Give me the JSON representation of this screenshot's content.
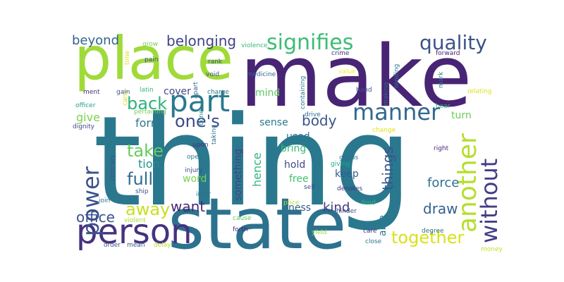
{
  "word_cloud": {
    "words": [
      {
        "text": "thing",
        "color": "#2a788e"
      },
      {
        "text": "make",
        "color": "#482475"
      },
      {
        "text": "state",
        "color": "#2c728e"
      },
      {
        "text": "place",
        "color": "#a0da39"
      },
      {
        "text": "part",
        "color": "#2a788e"
      },
      {
        "text": "person",
        "color": "#46327e"
      },
      {
        "text": "manner",
        "color": "#31688e"
      },
      {
        "text": "another",
        "color": "#b5de2b"
      },
      {
        "text": "without",
        "color": "#433e85"
      },
      {
        "text": "power",
        "color": "#3b528b"
      },
      {
        "text": "signifies",
        "color": "#3cbc75"
      },
      {
        "text": "quality",
        "color": "#3b528b"
      },
      {
        "text": "one's",
        "color": "#3e4989"
      },
      {
        "text": "back",
        "color": "#2db27d"
      },
      {
        "text": "take",
        "color": "#65cb5e"
      },
      {
        "text": "full",
        "color": "#2f6c8e"
      },
      {
        "text": "away",
        "color": "#c8e020"
      },
      {
        "text": "together",
        "color": "#d8e219"
      },
      {
        "text": "belonging",
        "color": "#414487"
      },
      {
        "text": "beyond",
        "color": "#33638d"
      },
      {
        "text": "body",
        "color": "#39568c"
      },
      {
        "text": "office",
        "color": "#3b528b"
      },
      {
        "text": "want",
        "color": "#482878"
      },
      {
        "text": "things",
        "color": "#3b528b"
      },
      {
        "text": "draw",
        "color": "#33638d"
      },
      {
        "text": "kind",
        "color": "#443a83"
      },
      {
        "text": "force",
        "color": "#2d718e"
      },
      {
        "text": "give",
        "color": "#7ad151"
      },
      {
        "text": "form",
        "color": "#2a788e"
      },
      {
        "text": "tion",
        "color": "#21918c"
      },
      {
        "text": "hence",
        "color": "#31b57b"
      },
      {
        "text": "cover",
        "color": "#404688"
      },
      {
        "text": "mind",
        "color": "#5ec962"
      },
      {
        "text": "sense",
        "color": "#2a788e"
      },
      {
        "text": "used",
        "color": "#2a788e"
      },
      {
        "text": "bring",
        "color": "#38b977"
      },
      {
        "text": "something",
        "color": "#414487"
      },
      {
        "text": "hold",
        "color": "#3e4989"
      },
      {
        "text": "free",
        "color": "#44bf70"
      },
      {
        "text": "keep",
        "color": "#365c8d"
      },
      {
        "text": "ness",
        "color": "#365c8d"
      },
      {
        "text": "able",
        "color": "#2a788e"
      },
      {
        "text": "turn",
        "color": "#6ccd5a"
      },
      {
        "text": "word",
        "color": "#7ad151"
      },
      {
        "text": "ment",
        "color": "#472c7a"
      },
      {
        "text": "officer",
        "color": "#1fa287"
      },
      {
        "text": "dignity",
        "color": "#3e4989"
      },
      {
        "text": "grow",
        "color": "#7ad151"
      },
      {
        "text": "pain",
        "color": "#3b528b"
      },
      {
        "text": "time",
        "color": "#dde318"
      },
      {
        "text": "carry",
        "color": "#d8e219"
      },
      {
        "text": "gain",
        "color": "#3b528b"
      },
      {
        "text": "latin",
        "color": "#35b779"
      },
      {
        "text": "pertaining",
        "color": "#73d056"
      },
      {
        "text": "violence",
        "color": "#35b779"
      },
      {
        "text": "rank",
        "color": "#39568c"
      },
      {
        "text": "void",
        "color": "#3b528b"
      },
      {
        "text": "apart",
        "color": "#31688e"
      },
      {
        "text": "charge",
        "color": "#2a788e"
      },
      {
        "text": "medicine",
        "color": "#31688e"
      },
      {
        "text": "containing",
        "color": "#2c728e"
      },
      {
        "text": "crime",
        "color": "#472f7d"
      },
      {
        "text": "value",
        "color": "#fde725"
      },
      {
        "text": "making",
        "color": "#31688e"
      },
      {
        "text": "tending",
        "color": "#2a788e"
      },
      {
        "text": "grow2",
        "color": "#7ad151"
      },
      {
        "text": "forward",
        "color": "#482475"
      },
      {
        "text": "mark",
        "color": "#2a788e"
      },
      {
        "text": "bear",
        "color": "#35b779"
      },
      {
        "text": "relating",
        "color": "#dde318"
      },
      {
        "text": "hand",
        "color": "#3b528b"
      },
      {
        "text": "done",
        "color": "#21918c"
      },
      {
        "text": "taking",
        "color": "#2c728e"
      },
      {
        "text": "drive",
        "color": "#31688e"
      },
      {
        "text": "change",
        "color": "#dde318"
      },
      {
        "text": "upon",
        "color": "#472f7d"
      },
      {
        "text": "open",
        "color": "#2a788e"
      },
      {
        "text": "injury",
        "color": "#3b528b"
      },
      {
        "text": "inter",
        "color": "#2c728e"
      },
      {
        "text": "self",
        "color": "#3e4989"
      },
      {
        "text": "giving",
        "color": "#22a884"
      },
      {
        "text": "goods",
        "color": "#2c728e"
      },
      {
        "text": "denotes",
        "color": "#46337e"
      },
      {
        "text": "hinder",
        "color": "#3b528b"
      },
      {
        "text": "right",
        "color": "#482475"
      },
      {
        "text": "contrary",
        "color": "#3b528b"
      },
      {
        "text": "ship",
        "color": "#3b528b"
      },
      {
        "text": "join",
        "color": "#2a788e"
      },
      {
        "text": "violent",
        "color": "#a5db36"
      },
      {
        "text": "price",
        "color": "#b5de2b"
      },
      {
        "text": "food",
        "color": "#35b779"
      },
      {
        "text": "cause",
        "color": "#5ec962"
      },
      {
        "text": "yield",
        "color": "#8bd646"
      },
      {
        "text": "forth",
        "color": "#482878"
      },
      {
        "text": "care",
        "color": "#453781"
      },
      {
        "text": "degree",
        "color": "#2c728e"
      },
      {
        "text": "money",
        "color": "#bddf26"
      },
      {
        "text": "order",
        "color": "#3b528b"
      },
      {
        "text": "mean",
        "color": "#3b528b"
      },
      {
        "text": "delay",
        "color": "#bddf26"
      },
      {
        "text": "close",
        "color": "#2a788e"
      }
    ]
  }
}
